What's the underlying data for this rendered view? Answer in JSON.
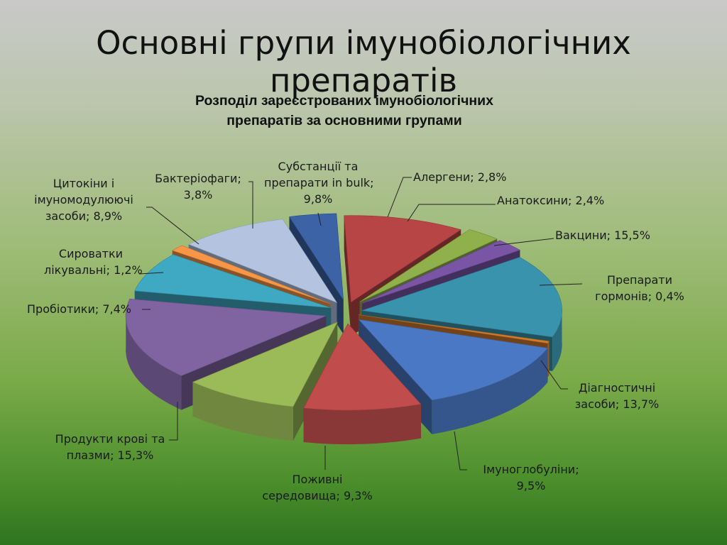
{
  "slide": {
    "title": "Основні групи імунобіологічних препаратів"
  },
  "chart_data": {
    "type": "pie",
    "title": "Розподіл зареєстрованих імунобіологічних препаратів за основними групами",
    "title_lines": [
      "Розподіл зареєстрованих імунобіологічних",
      "препаратів за основними групами"
    ],
    "unit": "%",
    "style": "3d-exploded",
    "slices": [
      {
        "name": "Субстанції та препарати in bulk",
        "value": 9.8,
        "label_lines": [
          "Субстанції та",
          "препарати in bulk;",
          "9,8%"
        ],
        "color": "#b84545"
      },
      {
        "name": "Алергени",
        "value": 2.8,
        "label_lines": [
          "Алергени; 2,8%"
        ],
        "color": "#8fb04a"
      },
      {
        "name": "Анатоксини",
        "value": 2.4,
        "label_lines": [
          "Анатоксини; 2,4%"
        ],
        "color": "#7a55a6"
      },
      {
        "name": "Вакцини",
        "value": 15.5,
        "label_lines": [
          "Вакцини; 15,5%"
        ],
        "color": "#3a93ad"
      },
      {
        "name": "Препарати гормонів",
        "value": 0.4,
        "label_lines": [
          "Препарати",
          "гормонів; 0,4%"
        ],
        "color": "#d07a2c"
      },
      {
        "name": "Діагностичні засоби",
        "value": 13.7,
        "label_lines": [
          "Діагностичні",
          "засоби; 13,7%"
        ],
        "color": "#4a78c4"
      },
      {
        "name": "Імуноглобуліни",
        "value": 9.5,
        "label_lines": [
          "Імуноглобуліни;",
          "9,5%"
        ],
        "color": "#c04c4c"
      },
      {
        "name": "Поживні середовища",
        "value": 9.3,
        "label_lines": [
          "Поживні",
          "середовища; 9,3%"
        ],
        "color": "#9bbb59"
      },
      {
        "name": "Продукти крові та плазми",
        "value": 15.3,
        "label_lines": [
          "Продукти крові та",
          "плазми; 15,3%"
        ],
        "color": "#8064a2"
      },
      {
        "name": "Пробіотики",
        "value": 7.4,
        "label_lines": [
          "Пробіотики; 7,4%"
        ],
        "color": "#3fa9c4"
      },
      {
        "name": "Сироватки лікувальні",
        "value": 1.2,
        "label_lines": [
          "Сироватки",
          "лікувальні; 1,2%"
        ],
        "color": "#f79646"
      },
      {
        "name": "Цитокіни і імуномодулюючі засоби",
        "value": 8.9,
        "label_lines": [
          "Цитокіни і",
          "імуномодулюючі",
          "засоби; 8,9%"
        ],
        "color": "#b4c4e0"
      },
      {
        "name": "Бактеріофаги",
        "value": 3.8,
        "label_lines": [
          "Бактеріофаги;",
          "3,8%"
        ],
        "color": "#3b63a6"
      }
    ]
  }
}
